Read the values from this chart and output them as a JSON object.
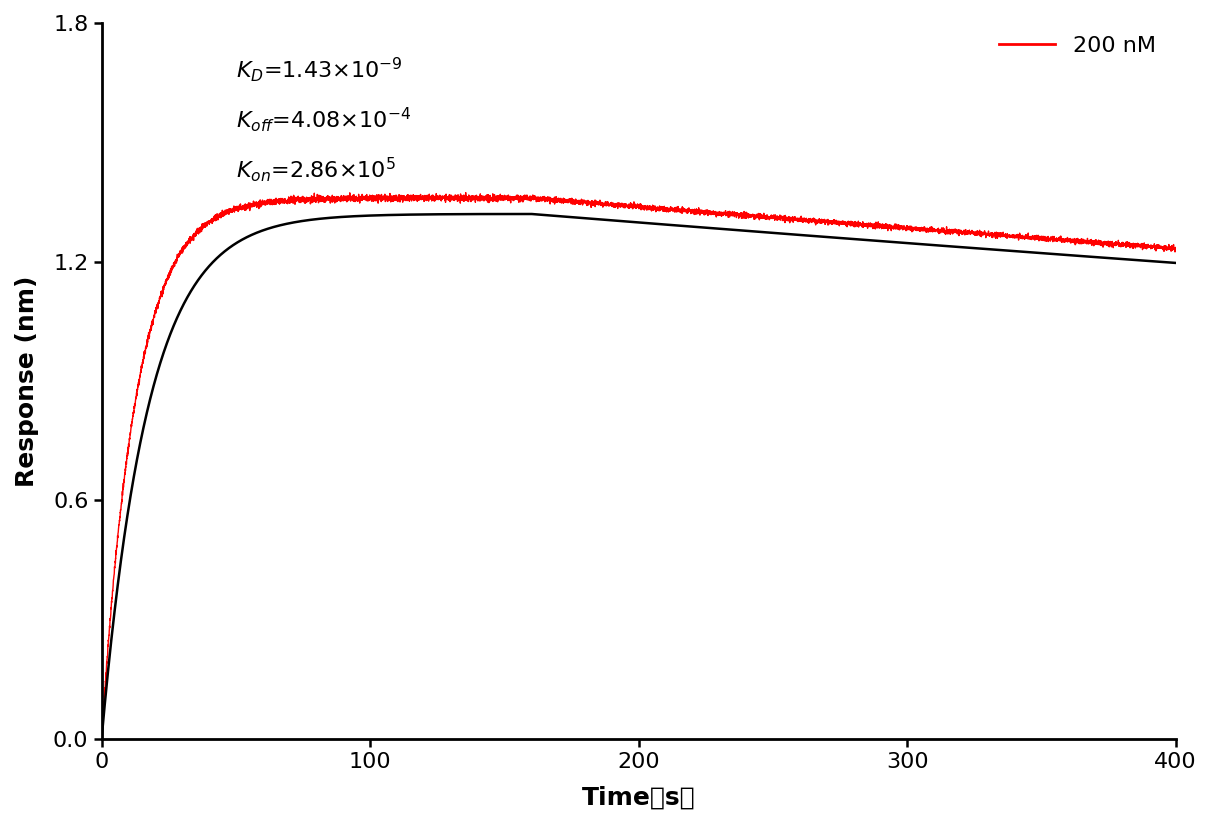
{
  "ylabel": "Response (nm)",
  "xlim": [
    0,
    400
  ],
  "ylim": [
    0.0,
    1.8
  ],
  "xticks": [
    0,
    100,
    200,
    300,
    400
  ],
  "yticks": [
    0.0,
    0.6,
    1.2,
    1.8
  ],
  "legend_label": "200 nM",
  "red_color": "#FF0000",
  "black_color": "#000000",
  "association_end": 160,
  "kon_val": 286000,
  "koff_val": 0.000408,
  "Rmax_fit": 1.32,
  "Rmax_data": 1.36,
  "noise_amplitude": 0.004,
  "background_color": "#ffffff",
  "font_size_ticks": 16,
  "font_size_labels": 18,
  "font_size_annot": 16,
  "font_size_legend": 16
}
